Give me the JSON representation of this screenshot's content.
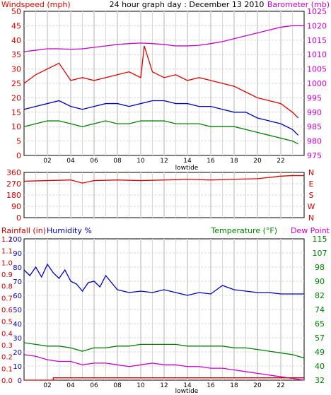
{
  "colors": {
    "windspeed": "#e00000",
    "gust": "#e00000",
    "wind_avg": "#0000c0",
    "wind_low": "#008000",
    "barometer": "#cc00cc",
    "direction": "#e00000",
    "humidity": "#0000c0",
    "temperature": "#008000",
    "dewpoint": "#cc00cc",
    "rainfall": "#cc0000",
    "plot_bg": "#ffffff",
    "grid": "#d8d8d8",
    "axis": "#000000",
    "rain_axis_text": "#cc0000",
    "humidity_axis_text": "#0000c0",
    "temp_axis_text": "#008000",
    "dew_axis_text": "#cc00cc"
  },
  "chart_data": [
    {
      "type": "line",
      "title": "24 hour graph day : December 13 2010",
      "ylabel_left": "Windspeed (mph)",
      "ylabel_right": "Barometer (mb)",
      "x_ticks": [
        "02",
        "04",
        "06",
        "08",
        "10",
        "12",
        "14",
        "16",
        "18",
        "20",
        "22"
      ],
      "x_sublabel": "lowtide",
      "xlim": [
        0,
        24
      ],
      "ylim_left": [
        0,
        50
      ],
      "y_ticks_left": [
        "0",
        "5",
        "10",
        "15",
        "20",
        "25",
        "30",
        "35",
        "40",
        "45",
        "50"
      ],
      "ylim_right": [
        975,
        1025
      ],
      "y_ticks_right": [
        "975",
        "980",
        "985",
        "990",
        "995",
        "1000",
        "1005",
        "1010",
        "1015",
        "1020",
        "1025"
      ],
      "grid": true,
      "series": [
        {
          "axis": "left",
          "x": [
            0.0,
            1.0,
            2.0,
            3.0,
            3.5,
            4.0,
            5.0,
            6.0,
            7.0,
            8.0,
            9.0,
            10.0,
            10.3,
            11.0,
            12.0,
            13.0,
            14.0,
            15.0,
            16.0,
            17.0,
            18.0,
            19.0,
            20.0,
            21.0,
            22.0,
            23.0,
            23.5
          ],
          "y": [
            25,
            28,
            30,
            32,
            29,
            26,
            27,
            26,
            27,
            28,
            29,
            27,
            38,
            29,
            27,
            28,
            26,
            27,
            26,
            25,
            24,
            22,
            20,
            19,
            18,
            15,
            13
          ]
        },
        {
          "axis": "left",
          "x": [
            0.0,
            1.0,
            2.0,
            3.0,
            4.0,
            5.0,
            6.0,
            7.0,
            8.0,
            9.0,
            10.0,
            11.0,
            12.0,
            13.0,
            14.0,
            15.0,
            16.0,
            17.0,
            18.0,
            19.0,
            20.0,
            21.0,
            22.0,
            23.0,
            23.5
          ],
          "y": [
            16,
            17,
            18,
            19,
            17,
            16,
            17,
            18,
            18,
            17,
            18,
            19,
            19,
            18,
            18,
            17,
            17,
            16,
            15,
            15,
            13,
            12,
            11,
            9,
            7
          ]
        },
        {
          "axis": "left",
          "x": [
            0.0,
            1.0,
            2.0,
            3.0,
            4.0,
            5.0,
            6.0,
            7.0,
            8.0,
            9.0,
            10.0,
            11.0,
            12.0,
            13.0,
            14.0,
            15.0,
            16.0,
            17.0,
            18.0,
            19.0,
            20.0,
            21.0,
            22.0,
            23.0,
            23.5
          ],
          "y": [
            10,
            11,
            12,
            12,
            11,
            10,
            11,
            12,
            11,
            11,
            12,
            12,
            12,
            11,
            11,
            11,
            10,
            10,
            10,
            9,
            8,
            7,
            6,
            5,
            4
          ]
        },
        {
          "axis": "right",
          "x": [
            0,
            1,
            2,
            3,
            4,
            5,
            6,
            7,
            8,
            9,
            10,
            11,
            12,
            13,
            14,
            15,
            16,
            17,
            18,
            19,
            20,
            21,
            22,
            23,
            24
          ],
          "y": [
            1011.0,
            1011.5,
            1012.0,
            1012.0,
            1011.8,
            1012.0,
            1012.5,
            1013.0,
            1013.5,
            1013.8,
            1014.0,
            1013.8,
            1013.5,
            1013.0,
            1013.0,
            1013.2,
            1013.8,
            1014.5,
            1015.5,
            1016.5,
            1017.5,
            1018.5,
            1019.5,
            1020.0,
            1020.0
          ]
        }
      ]
    },
    {
      "type": "line",
      "ylabel_right": "N W S E N",
      "xlim": [
        0,
        24
      ],
      "ylim_left": [
        0,
        360
      ],
      "y_ticks_left": [
        "0",
        "90",
        "180",
        "270",
        "360"
      ],
      "y_ticks_right": [
        "N",
        "W",
        "S",
        "E",
        "N"
      ],
      "grid": true,
      "series": [
        {
          "x": [
            0,
            2,
            4,
            5,
            6,
            8,
            10,
            12,
            14,
            16,
            18,
            20,
            21,
            22,
            23,
            24
          ],
          "y": [
            290,
            295,
            300,
            275,
            295,
            300,
            295,
            300,
            305,
            300,
            305,
            310,
            320,
            330,
            335,
            335
          ]
        }
      ]
    },
    {
      "type": "line",
      "ylabel_left": "Rainfall (in)",
      "ylabel_left_2": "Humidity %",
      "ylabel_right": "Temperature (°F)",
      "ylabel_right_2": "Dew Point",
      "x_ticks": [
        "02",
        "04",
        "06",
        "08",
        "10",
        "12",
        "14",
        "16",
        "18",
        "20",
        "22"
      ],
      "x_sublabel": "lowtide",
      "xlim": [
        0,
        24
      ],
      "ylim_rain": [
        0,
        1.2
      ],
      "y_ticks_rain": [
        "0.0",
        "0.1",
        "0.2",
        "0.3",
        "0.4",
        "0.5",
        "0.6",
        "0.7",
        "0.8",
        "0.9",
        "1.0",
        "1.1",
        "1.2"
      ],
      "ylim_humidity": [
        0,
        100
      ],
      "y_ticks_humidity": [
        "0",
        "10",
        "20",
        "30",
        "40",
        "50",
        "60",
        "70",
        "80",
        "90",
        "100"
      ],
      "ylim_temp": [
        32,
        115
      ],
      "y_ticks_temp": [
        "32",
        "40",
        "49",
        "57",
        "65",
        "74",
        "82",
        "90",
        "98",
        "107",
        "115"
      ],
      "grid": true,
      "series": [
        {
          "axis": "humidity",
          "x": [
            0,
            0.5,
            1,
            1.5,
            2,
            2.5,
            3,
            3.5,
            4,
            4.5,
            5,
            5.5,
            6,
            6.5,
            7,
            8,
            9,
            10,
            11,
            12,
            13,
            14,
            15,
            16,
            17,
            18,
            19,
            20,
            21,
            22,
            23,
            24
          ],
          "y": [
            78,
            74,
            80,
            73,
            82,
            76,
            72,
            78,
            70,
            68,
            63,
            69,
            70,
            66,
            74,
            64,
            62,
            63,
            62,
            64,
            62,
            60,
            62,
            61,
            67,
            64,
            63,
            62,
            62,
            61,
            61,
            61
          ]
        },
        {
          "axis": "temp",
          "x": [
            0,
            1,
            2,
            3,
            4,
            5,
            6,
            7,
            8,
            9,
            10,
            11,
            12,
            13,
            14,
            15,
            16,
            17,
            18,
            19,
            20,
            21,
            22,
            23,
            24
          ],
          "y": [
            54,
            53,
            52,
            52,
            51,
            49,
            51,
            51,
            52,
            52,
            53,
            53,
            53,
            53,
            52,
            52,
            52,
            52,
            51,
            51,
            50,
            49,
            48,
            47,
            45
          ]
        },
        {
          "axis": "temp",
          "x": [
            0,
            1,
            2,
            3,
            4,
            5,
            6,
            7,
            8,
            9,
            10,
            11,
            12,
            13,
            14,
            15,
            16,
            17,
            18,
            19,
            20,
            21,
            22,
            23,
            24
          ],
          "y": [
            47,
            46,
            44,
            43,
            43,
            41,
            42,
            42,
            41,
            40,
            41,
            42,
            41,
            41,
            40,
            40,
            39,
            39,
            38,
            37,
            36,
            35,
            34,
            33,
            32
          ]
        },
        {
          "axis": "rain",
          "x": [
            0,
            2.5,
            2.51,
            24
          ],
          "y": [
            0.0,
            0.0,
            0.02,
            0.02
          ]
        }
      ]
    }
  ]
}
